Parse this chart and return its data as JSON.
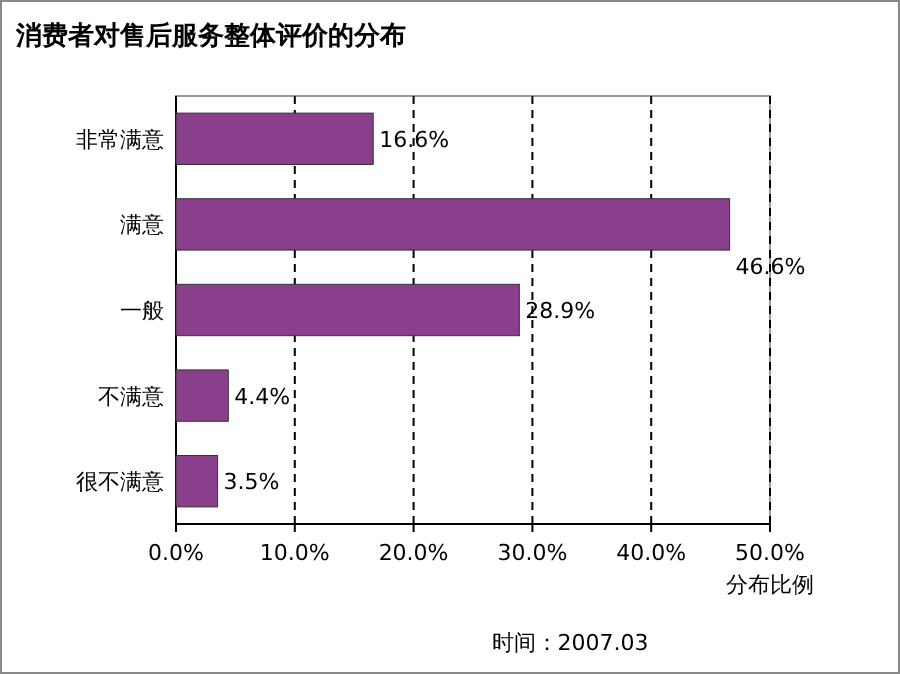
{
  "chart_data": {
    "type": "bar",
    "orientation": "horizontal",
    "title": "消费者对售后服务整体评价的分布",
    "xlabel": "分布比例",
    "categories": [
      "非常满意",
      "满意",
      "一般",
      "不满意",
      "很不满意"
    ],
    "values": [
      16.6,
      46.6,
      28.9,
      4.4,
      3.5
    ],
    "value_labels": [
      "16.6%",
      "46.6%",
      "28.9%",
      "4.4%",
      "3.5%"
    ],
    "color": "#8a3f8c",
    "xlim": [
      0,
      50
    ],
    "xticks": [
      {
        "value": 0,
        "label": "0.0%"
      },
      {
        "value": 10,
        "label": "10.0%"
      },
      {
        "value": 20,
        "label": "20.0%"
      },
      {
        "value": 30,
        "label": "30.0%"
      },
      {
        "value": 40,
        "label": "40.0%"
      },
      {
        "value": 50,
        "label": "50.0%"
      }
    ],
    "grid": "x",
    "annotations": [
      "时间：2007.03"
    ]
  }
}
